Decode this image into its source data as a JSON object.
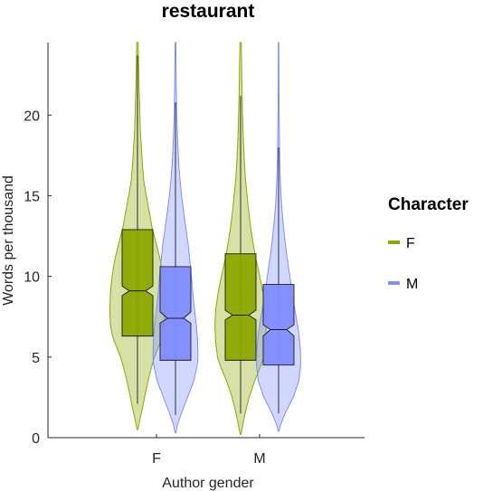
{
  "chart_data": {
    "type": "violin",
    "title": "restaurant",
    "xlabel": "Author gender",
    "ylabel": "Words per thousand",
    "categories": [
      "F",
      "M"
    ],
    "ylim": [
      0,
      24.5
    ],
    "yticks": [
      0,
      5,
      10,
      15,
      20
    ],
    "grid": false,
    "legend": {
      "title": "Character",
      "position": "right",
      "entries": [
        {
          "name": "F",
          "color": "#8aa800"
        },
        {
          "name": "M",
          "color": "#7f8cff"
        }
      ]
    },
    "series": [
      {
        "name": "F",
        "color": "#8aa800",
        "groups": [
          {
            "category": "F",
            "q1": 6.3,
            "median": 9.1,
            "q3": 12.9,
            "notch_low": 8.8,
            "notch_high": 9.4,
            "whisker_low": 2.1,
            "whisker_high": 23.7,
            "min": 0.5,
            "max": 24.5,
            "density": [
              [
                0.5,
                0.01
              ],
              [
                1.0,
                0.06
              ],
              [
                2.0,
                0.17
              ],
              [
                3.0,
                0.27
              ],
              [
                4.0,
                0.38
              ],
              [
                5.0,
                0.52
              ],
              [
                6.0,
                0.72
              ],
              [
                6.5,
                0.79
              ],
              [
                7.0,
                0.83
              ],
              [
                8.0,
                0.85
              ],
              [
                9.0,
                0.83
              ],
              [
                10.0,
                0.78
              ],
              [
                11.0,
                0.7
              ],
              [
                12.0,
                0.58
              ],
              [
                13.0,
                0.45
              ],
              [
                14.0,
                0.36
              ],
              [
                15.0,
                0.27
              ],
              [
                16.0,
                0.19
              ],
              [
                17.0,
                0.15
              ],
              [
                18.0,
                0.12
              ],
              [
                19.0,
                0.09
              ],
              [
                20.0,
                0.075
              ],
              [
                21.0,
                0.06
              ],
              [
                22.0,
                0.045
              ],
              [
                23.0,
                0.035
              ],
              [
                24.5,
                0.02
              ]
            ]
          },
          {
            "category": "M",
            "q1": 4.8,
            "median": 7.6,
            "q3": 11.4,
            "notch_low": 7.3,
            "notch_high": 7.9,
            "whisker_low": 1.5,
            "whisker_high": 21.2,
            "min": 0.2,
            "max": 24.5,
            "density": [
              [
                0.2,
                0.01
              ],
              [
                0.6,
                0.05
              ],
              [
                1.5,
                0.14
              ],
              [
                2.5,
                0.26
              ],
              [
                3.5,
                0.43
              ],
              [
                4.5,
                0.63
              ],
              [
                5.0,
                0.71
              ],
              [
                6.0,
                0.77
              ],
              [
                7.0,
                0.79
              ],
              [
                8.0,
                0.76
              ],
              [
                9.0,
                0.69
              ],
              [
                10.0,
                0.59
              ],
              [
                11.0,
                0.48
              ],
              [
                12.0,
                0.39
              ],
              [
                13.0,
                0.31
              ],
              [
                14.0,
                0.25
              ],
              [
                15.0,
                0.2
              ],
              [
                16.0,
                0.15
              ],
              [
                17.0,
                0.12
              ],
              [
                18.0,
                0.095
              ],
              [
                19.0,
                0.075
              ],
              [
                20.0,
                0.06
              ],
              [
                21.0,
                0.05
              ],
              [
                22.0,
                0.04
              ],
              [
                23.0,
                0.032
              ],
              [
                24.5,
                0.02
              ]
            ]
          }
        ]
      },
      {
        "name": "M",
        "color": "#7f8cff",
        "groups": [
          {
            "category": "F",
            "q1": 4.8,
            "median": 7.4,
            "q3": 10.6,
            "notch_low": 7.1,
            "notch_high": 7.8,
            "whisker_low": 1.4,
            "whisker_high": 20.8,
            "min": 0.3,
            "max": 24.5,
            "density": [
              [
                0.3,
                0.01
              ],
              [
                0.8,
                0.06
              ],
              [
                1.5,
                0.18
              ],
              [
                2.5,
                0.37
              ],
              [
                3.5,
                0.56
              ],
              [
                4.5,
                0.67
              ],
              [
                5.0,
                0.69
              ],
              [
                6.0,
                0.68
              ],
              [
                7.0,
                0.64
              ],
              [
                8.0,
                0.58
              ],
              [
                9.0,
                0.53
              ],
              [
                10.0,
                0.49
              ],
              [
                11.0,
                0.44
              ],
              [
                12.0,
                0.39
              ],
              [
                13.0,
                0.32
              ],
              [
                14.0,
                0.25
              ],
              [
                15.0,
                0.19
              ],
              [
                16.0,
                0.14
              ],
              [
                17.0,
                0.1
              ],
              [
                18.0,
                0.075
              ],
              [
                19.0,
                0.055
              ],
              [
                20.0,
                0.04
              ],
              [
                21.0,
                0.03
              ],
              [
                22.0,
                0.022
              ],
              [
                23.0,
                0.016
              ],
              [
                24.5,
                0.01
              ]
            ]
          },
          {
            "category": "M",
            "q1": 4.5,
            "median": 6.7,
            "q3": 9.5,
            "notch_low": 6.3,
            "notch_high": 7.0,
            "whisker_low": 1.5,
            "whisker_high": 18.0,
            "min": 0.4,
            "max": 24.5,
            "density": [
              [
                0.4,
                0.01
              ],
              [
                0.8,
                0.06
              ],
              [
                1.5,
                0.2
              ],
              [
                2.5,
                0.45
              ],
              [
                3.5,
                0.62
              ],
              [
                4.5,
                0.68
              ],
              [
                5.5,
                0.67
              ],
              [
                6.5,
                0.62
              ],
              [
                7.5,
                0.54
              ],
              [
                8.5,
                0.45
              ],
              [
                9.5,
                0.38
              ],
              [
                10.5,
                0.31
              ],
              [
                11.5,
                0.24
              ],
              [
                12.5,
                0.18
              ],
              [
                13.5,
                0.13
              ],
              [
                14.5,
                0.09
              ],
              [
                15.5,
                0.065
              ],
              [
                16.5,
                0.045
              ],
              [
                17.5,
                0.033
              ],
              [
                18.5,
                0.025
              ],
              [
                20.0,
                0.018
              ],
              [
                22.0,
                0.012
              ],
              [
                24.5,
                0.008
              ]
            ]
          }
        ]
      }
    ]
  }
}
